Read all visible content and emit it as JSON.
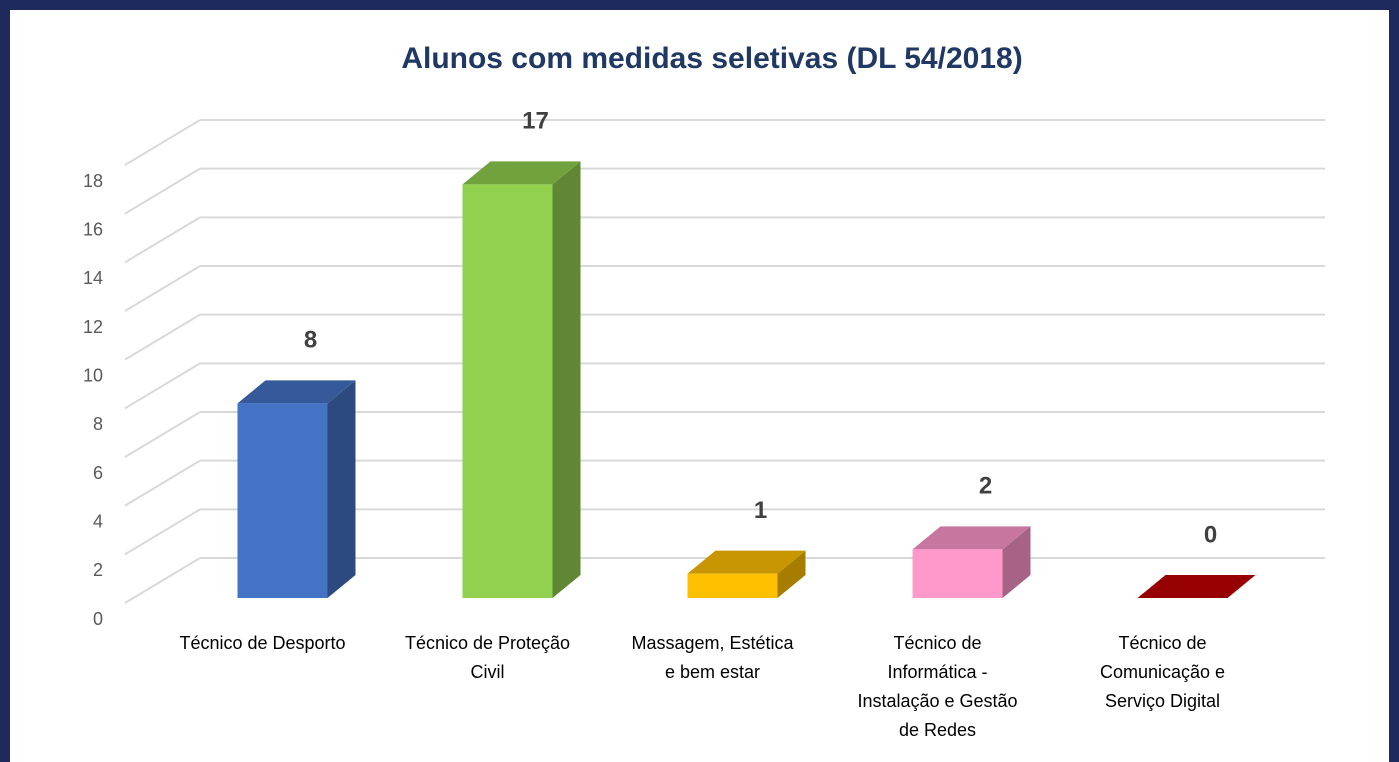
{
  "chart_data": {
    "type": "bar3d",
    "title": "Alunos com medidas seletivas (DL 54/2018)",
    "categories": [
      [
        "Técnico de Desporto"
      ],
      [
        "Técnico de Proteção",
        "Civil"
      ],
      [
        "Massagem, Estética",
        "e bem estar"
      ],
      [
        "Técnico de",
        "Informática -",
        "Instalação e Gestão",
        "de Redes"
      ],
      [
        "Técnico de",
        "Comunicação e",
        "Serviço Digital"
      ]
    ],
    "values": [
      8,
      17,
      1,
      2,
      0
    ],
    "colors": [
      "#4472c4",
      "#92d050",
      "#ffc000",
      "#ff99cc",
      "#c00000"
    ],
    "ylim": [
      0,
      18
    ],
    "yticks": [
      0,
      2,
      4,
      6,
      8,
      10,
      12,
      14,
      16,
      18
    ],
    "grid": true
  }
}
